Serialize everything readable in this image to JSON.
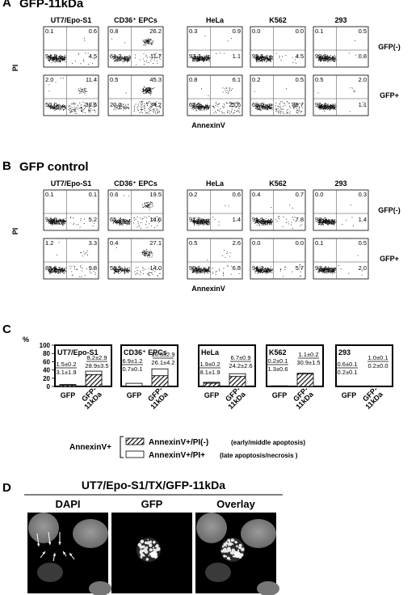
{
  "panel_a": {
    "letter": "A",
    "title": "GFP-11kDa",
    "cells": [
      "UT7/Epo-S1",
      "CD36⁺ EPCs",
      "HeLa",
      "K562",
      "293"
    ],
    "y_label": "PI",
    "x_label": "AnnexinV",
    "row_labels": [
      "GFP(-)",
      "GFP+"
    ],
    "quadrants": [
      [
        [
          "0.1",
          "0.6",
          "94.8",
          "4.5"
        ],
        [
          "0.8",
          "26.2",
          "61.3",
          "11.7"
        ],
        [
          "0.3",
          "0.9",
          "97.7",
          "1.1"
        ],
        [
          "0.0",
          "0.0",
          "95.5",
          "4.5"
        ],
        [
          "0.1",
          "0.5",
          "98.8",
          "0.8"
        ]
      ],
      [
        [
          "2.0",
          "11.4",
          "50.0",
          "36.6"
        ],
        [
          "0.5",
          "45.3",
          "20.0",
          "34.2"
        ],
        [
          "0.8",
          "6.1",
          "67.5",
          "25.6"
        ],
        [
          "0.2",
          "0.5",
          "68.6",
          "30.7"
        ],
        [
          "0.5",
          "2.0",
          "96.4",
          "1.1"
        ]
      ]
    ]
  },
  "panel_b": {
    "letter": "B",
    "title": "GFP control",
    "cells": [
      "UT7/Epo-S1",
      "CD36⁺ EPCs",
      "HeLa",
      "K562",
      "293"
    ],
    "y_label": "PI",
    "x_label": "AnnexinV",
    "row_labels": [
      "GFP(-)",
      "GFP+"
    ],
    "quadrants": [
      [
        [
          "0.1",
          "0.1",
          "94.6",
          "5.2"
        ],
        [
          "0.6",
          "19.5",
          "65.4",
          "14.5"
        ],
        [
          "0.2",
          "0.6",
          "97.9",
          "1.4"
        ],
        [
          "0.4",
          "0.7",
          "91.1",
          "7.8"
        ],
        [
          "0.0",
          "0.3",
          "98.3",
          "1.4"
        ]
      ],
      [
        [
          "1.2",
          "3.3",
          "85.6",
          "9.8"
        ],
        [
          "0.4",
          "27.1",
          "58.5",
          "14.0"
        ],
        [
          "0.5",
          "2.6",
          "90.1",
          "6.8"
        ],
        [
          "0.0",
          "0.0",
          "94.3",
          "5.7"
        ],
        [
          "0.1",
          "0.5",
          "97.4",
          "2.0"
        ]
      ]
    ]
  },
  "panel_c": {
    "letter": "C",
    "y_unit": "%",
    "y_ticks": [
      "100",
      "80",
      "60",
      "40",
      "20",
      "0"
    ],
    "groups": [
      "UT7/Epo-S1",
      "CD36⁺ EPCs",
      "HeLa",
      "K562",
      "293"
    ],
    "bar_labels": [
      "GFP",
      "GFP-\n11kDa"
    ],
    "annotations": [
      [
        [
          "1.5±0.2",
          "3.1±1.9"
        ],
        [
          "8.2±2.9",
          "28.9±3.5"
        ]
      ],
      [
        [
          "6.9±1.2",
          "0.7±0.1"
        ],
        [
          "16.5±2.9",
          "26.1±4.2"
        ]
      ],
      [
        [
          "1.9±0.2",
          "8.1±1.9"
        ],
        [
          "6.7±0.9",
          "24.2±2.6"
        ]
      ],
      [
        [
          "0.2±0.1",
          "1.3±0.6"
        ],
        [
          "1.1±0.2",
          "30.9±1.5"
        ]
      ],
      [
        [
          "0.6±0.1",
          "0.2±0.1"
        ],
        [
          "1.0±0.1",
          "0.2±0.0"
        ]
      ]
    ],
    "legend": {
      "prefix": "AnnexinV+",
      "hatched": "AnnexinV+/PI(-)",
      "hatched_note": "(early/middle apoptosis)",
      "open": "AnnexinV+/PI+",
      "open_note": "(late apoptosis/necrosis )"
    }
  },
  "panel_d": {
    "letter": "D",
    "title": "UT7/Epo-S1/TX/GFP-11kDa",
    "images": [
      "DAPI",
      "GFP",
      "Overlay"
    ]
  },
  "chart_data": [
    {
      "type": "bar",
      "title": "",
      "ylabel": "%",
      "ylim": [
        0,
        100
      ],
      "groups": [
        "UT7/Epo-S1",
        "CD36⁺ EPCs",
        "HeLa",
        "K562",
        "293"
      ],
      "categories": [
        "GFP",
        "GFP-11kDa"
      ],
      "series": [
        {
          "name": "AnnexinV+/PI(-)",
          "values": [
            [
              3.1,
              28.9
            ],
            [
              0.7,
              26.1
            ],
            [
              8.1,
              24.2
            ],
            [
              1.3,
              30.9
            ],
            [
              0.2,
              0.2
            ]
          ]
        },
        {
          "name": "AnnexinV+/PI+",
          "values": [
            [
              1.5,
              8.2
            ],
            [
              6.9,
              16.5
            ],
            [
              1.9,
              6.7
            ],
            [
              0.2,
              1.1
            ],
            [
              0.6,
              1.0
            ]
          ]
        }
      ]
    }
  ]
}
